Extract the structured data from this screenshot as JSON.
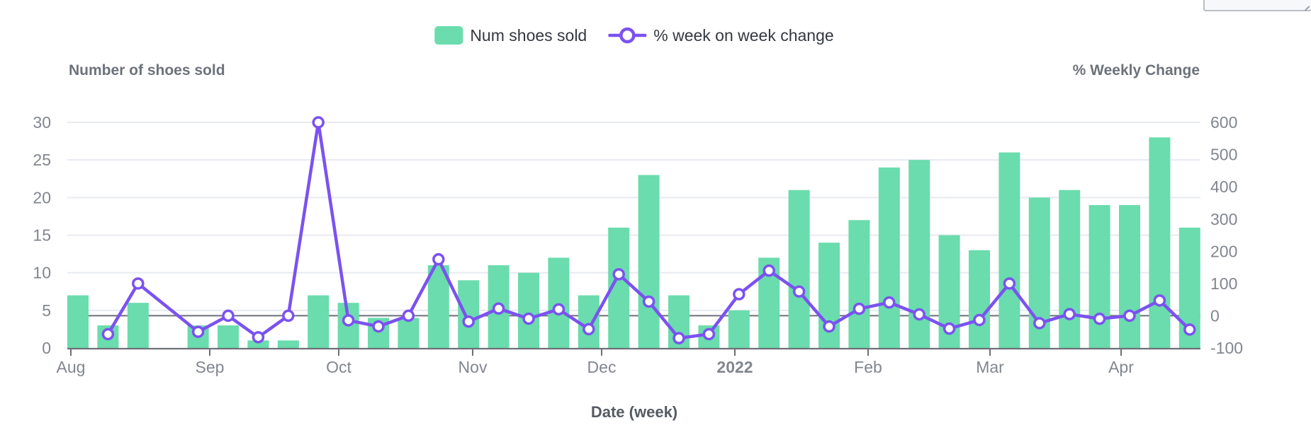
{
  "colors": {
    "bar_green": "#6ADCAD",
    "line_purple": "#7B52F0",
    "gridline": "#E7EAF2",
    "axis_line": "#6E7079",
    "tick_label": "#81868F",
    "axis_title": "#6D727B",
    "legend_text": "#333840",
    "marker_fill": "#FFFFFF",
    "cutoff_panel_fill": "#F6F8FA",
    "cutoff_panel_border": "#B9BFC7"
  },
  "legend": {
    "items": [
      {
        "label": "Num shoes sold",
        "icon": "bar-swatch-icon"
      },
      {
        "label": "% week on week change",
        "icon": "line-ring-icon"
      }
    ]
  },
  "chart_data": {
    "type": "combo-bar-line",
    "x_unit": "week",
    "num_weeks": 38,
    "x_axis_label": "Date (week)",
    "month_ticks": [
      {
        "label": "Aug"
      },
      {
        "label": "Sep"
      },
      {
        "label": "Oct"
      },
      {
        "label": "Nov"
      },
      {
        "label": "Dec"
      },
      {
        "label": "2022",
        "bold": true
      },
      {
        "label": "Feb"
      },
      {
        "label": "Mar"
      },
      {
        "label": "Apr"
      }
    ],
    "left_axis": {
      "label": "Number of shoes sold",
      "min": 0,
      "max": 30,
      "ticks": [
        0,
        5,
        10,
        15,
        20,
        25,
        30
      ]
    },
    "right_axis": {
      "label": "% Weekly Change",
      "min": -100,
      "max": 600,
      "ticks": [
        -100,
        0,
        100,
        200,
        300,
        400,
        500,
        600
      ]
    },
    "series": [
      {
        "name": "Num shoes sold",
        "type": "bar",
        "axis": "left",
        "values": [
          7,
          3,
          6,
          null,
          3,
          3,
          1,
          1,
          7,
          6,
          4,
          4,
          11,
          9,
          11,
          10,
          12,
          7,
          16,
          23,
          7,
          3,
          5,
          12,
          21,
          14,
          17,
          24,
          25,
          15,
          13,
          26,
          20,
          21,
          19,
          19,
          28,
          16
        ]
      },
      {
        "name": "% week on week change",
        "type": "line",
        "axis": "right",
        "values": [
          null,
          -57.1,
          100,
          null,
          -50,
          0,
          -66.7,
          0,
          600,
          -14.3,
          -33.3,
          0,
          175,
          -18.2,
          22.2,
          -9.1,
          20,
          -41.7,
          128.6,
          43.8,
          -69.6,
          -57.1,
          66.7,
          140,
          75,
          -33.3,
          21.4,
          41.2,
          4.2,
          -40,
          -13.3,
          100,
          -23.1,
          5,
          -9.5,
          0,
          47.4,
          -42.9
        ]
      }
    ],
    "grid": true,
    "legend_position": "top-center"
  }
}
